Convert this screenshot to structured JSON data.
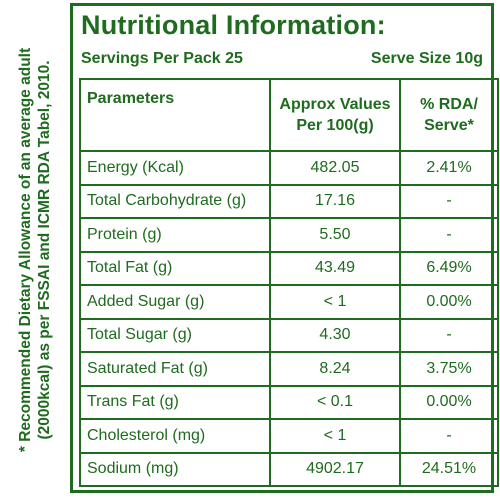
{
  "side_note": {
    "line1": "* Recommended Dietary Allowance of an average adult",
    "line2": "(2000kcal) as per FSSAI and ICMR RDA Tabel, 2010."
  },
  "title": "Nutritional Information:",
  "servings": {
    "per_pack": "Servings Per Pack 25",
    "serve_size": "Serve Size 10g"
  },
  "table": {
    "headers": {
      "param": "Parameters",
      "approx_line1": "Approx Values",
      "approx_line2": "Per 100(g)",
      "rda_line1": "% RDA/",
      "rda_line2": "Serve*"
    },
    "rows": [
      {
        "param": "Energy (Kcal)",
        "value": "482.05",
        "rda": "2.41%"
      },
      {
        "param": "Total Carbohydrate (g)",
        "value": "17.16",
        "rda": "-"
      },
      {
        "param": "Protein (g)",
        "value": "5.50",
        "rda": "-"
      },
      {
        "param": "Total Fat (g)",
        "value": "43.49",
        "rda": "6.49%"
      },
      {
        "param": "Added Sugar (g)",
        "value": "< 1",
        "rda": "0.00%"
      },
      {
        "param": "Total Sugar (g)",
        "value": "4.30",
        "rda": "-"
      },
      {
        "param": "Saturated Fat (g)",
        "value": "8.24",
        "rda": "3.75%"
      },
      {
        "param": "Trans Fat (g)",
        "value": "< 0.1",
        "rda": "0.00%"
      },
      {
        "param": "Cholesterol (mg)",
        "value": "< 1",
        "rda": "-"
      },
      {
        "param": "Sodium (mg)",
        "value": "4902.17",
        "rda": "24.51%"
      }
    ]
  },
  "colors": {
    "text": "#1f6b1f",
    "border": "#1f6b1f",
    "background": "#ffffff"
  }
}
